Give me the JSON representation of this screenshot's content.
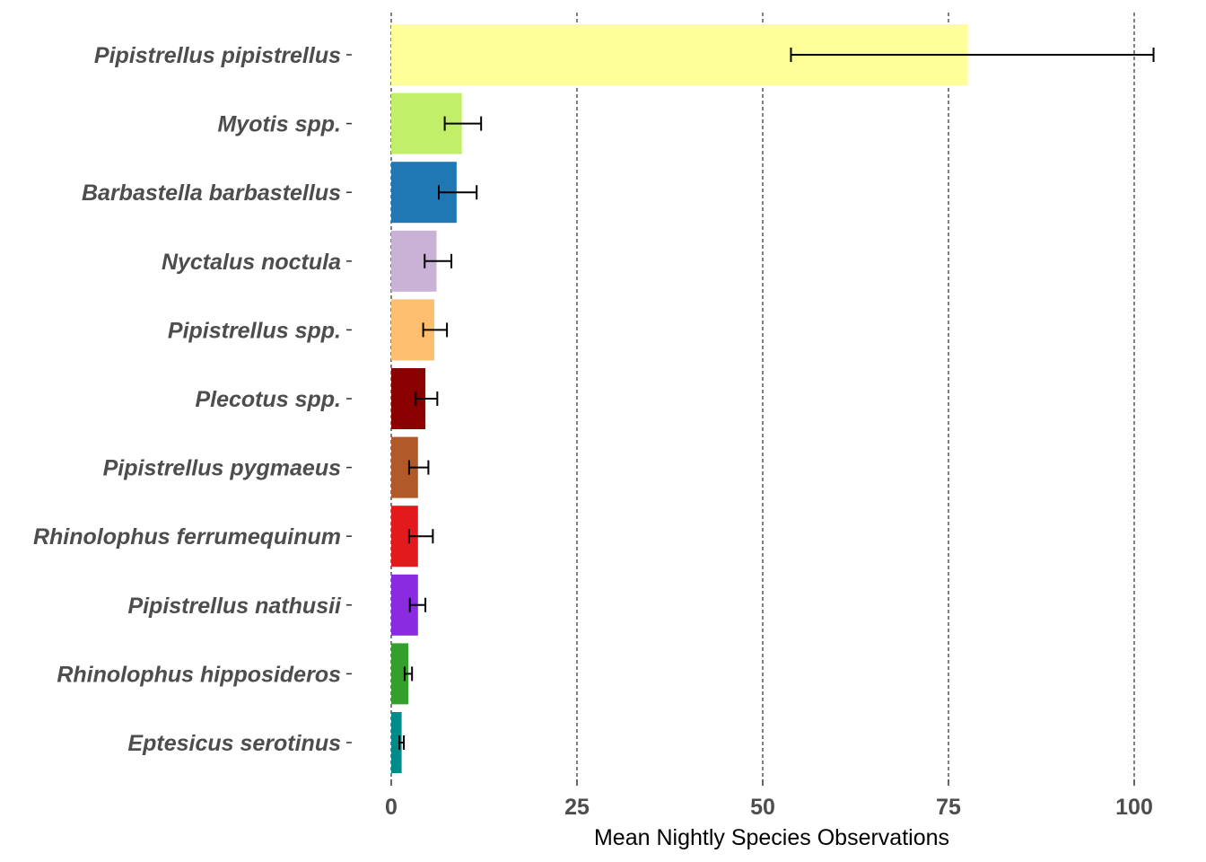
{
  "chart_data": {
    "type": "bar",
    "orientation": "horizontal",
    "title": "",
    "xlabel": "Mean Nightly Species Observations",
    "ylabel": "",
    "xlim": [
      0,
      103
    ],
    "xticks": [
      0,
      25,
      50,
      75,
      100
    ],
    "grid": "vertical-dashed",
    "legend": "none",
    "categories": [
      "Pipistrellus pipistrellus",
      "Myotis spp.",
      "Barbastella barbastellus",
      "Nyctalus noctula",
      "Pipistrellus spp.",
      "Plecotus spp.",
      "Pipistrellus pygmaeus",
      "Rhinolophus ferrumequinum",
      "Pipistrellus nathusii",
      "Rhinolophus hipposideros",
      "Eptesicus serotinus"
    ],
    "values": [
      77.6,
      9.5,
      8.8,
      6.1,
      5.8,
      4.6,
      3.6,
      3.6,
      3.6,
      2.3,
      1.4
    ],
    "error_low": [
      53.8,
      7.2,
      6.4,
      4.5,
      4.3,
      3.3,
      2.4,
      2.4,
      2.5,
      1.8,
      1.1
    ],
    "error_high": [
      102.6,
      12.1,
      11.5,
      8.1,
      7.5,
      6.2,
      5.0,
      5.6,
      4.6,
      2.8,
      1.7
    ],
    "colors": [
      "#ffff99",
      "#c2ef6a",
      "#1f78b4",
      "#cab2d6",
      "#fdbf6f",
      "#8b0000",
      "#b15928",
      "#e31a1c",
      "#8a2be2",
      "#33a02c",
      "#008b8b"
    ]
  }
}
